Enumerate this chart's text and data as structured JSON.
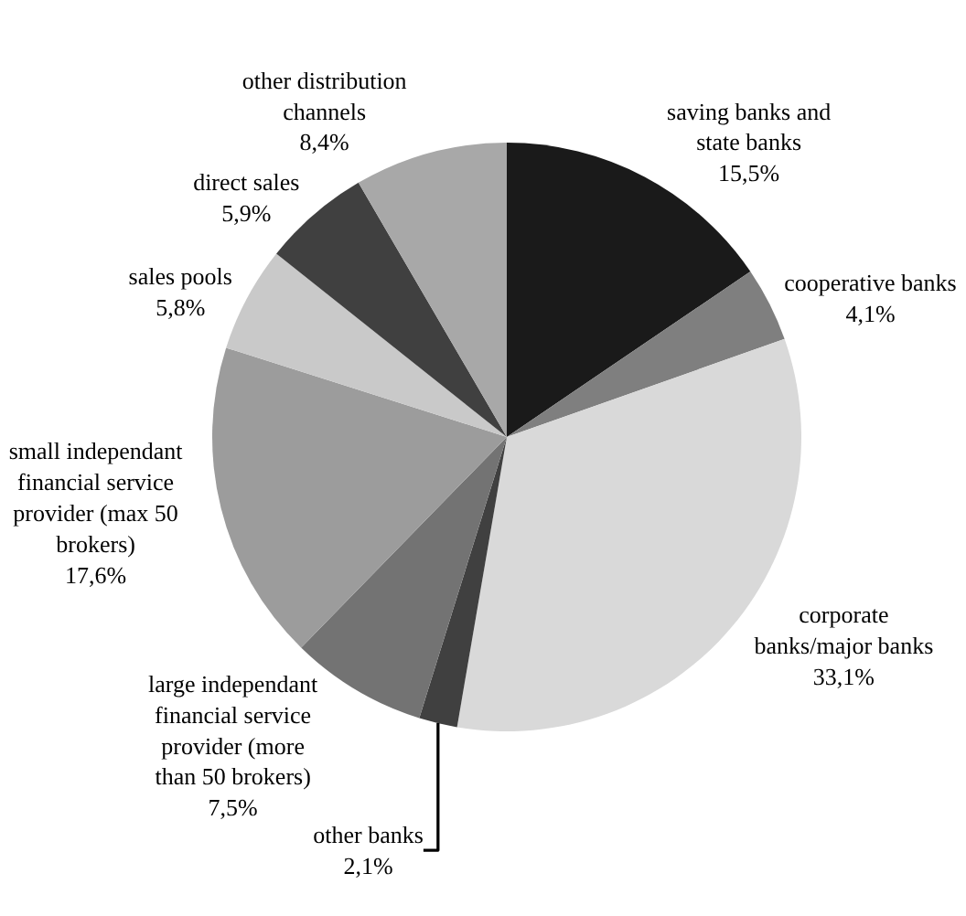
{
  "chart_data": {
    "type": "pie",
    "categories": [
      "saving banks and state banks",
      "cooperative banks",
      "corporate banks/major banks",
      "other banks",
      "large independant financial service provider (more than 50 brokers)",
      "small independant financial service provider (max 50 brokers)",
      "sales pools",
      "direct sales",
      "other distribution channels"
    ],
    "values": [
      15.5,
      4.1,
      33.1,
      2.1,
      7.5,
      17.6,
      5.8,
      5.9,
      8.4
    ],
    "value_labels": [
      "15,5%",
      "4,1%",
      "33,1%",
      "2,1%",
      "7,5%",
      "17,6%",
      "5,8%",
      "5,9%",
      "8,4%"
    ],
    "colors": [
      "#1a1a1a",
      "#7f7f7f",
      "#d9d9d9",
      "#404040",
      "#737373",
      "#9c9c9c",
      "#c9c9c9",
      "#404040",
      "#a8a8a8"
    ],
    "legend": false
  }
}
